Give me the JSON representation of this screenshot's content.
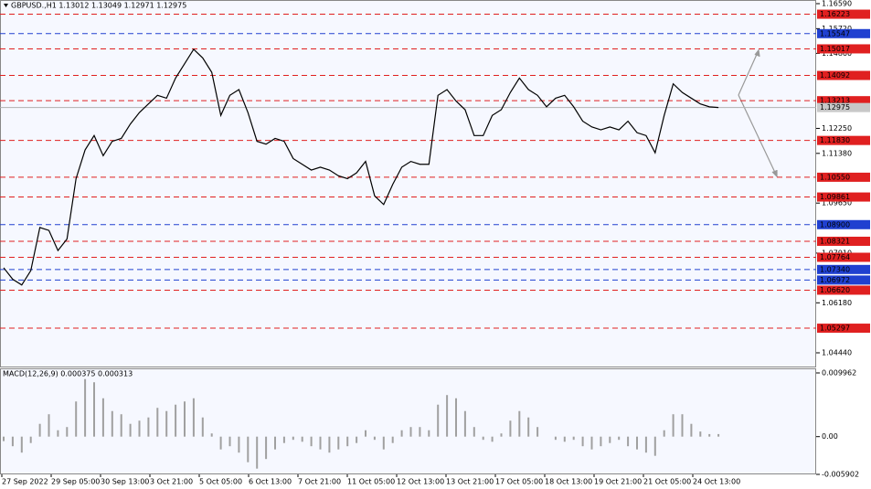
{
  "chart_data": [
    {
      "type": "line",
      "title": "GBPUSD.,H1  1.13012 1.13049 1.12971 1.12975",
      "color": "#000000",
      "ylim": [
        1.0444,
        1.1659
      ],
      "yticks": [
        {
          "value": 1.1659,
          "label": "1.16590"
        },
        {
          "value": 1.1572,
          "label": "1.15720"
        },
        {
          "value": 1.1486,
          "label": "1.14860"
        },
        {
          "value": 1.1225,
          "label": "1.12250"
        },
        {
          "value": 1.1138,
          "label": "1.11380"
        },
        {
          "value": 1.0965,
          "label": "1.09650"
        },
        {
          "value": 1.0791,
          "label": "1.07910"
        },
        {
          "value": 1.0618,
          "label": "1.06180"
        },
        {
          "value": 1.0444,
          "label": "1.04440"
        }
      ],
      "levels": [
        1.16223,
        1.15547,
        1.15017,
        1.14092,
        1.13213,
        {
          "value": 1.1183,
          "label": "1.11830"
        },
        {
          "value": 1.1055,
          "label": "1.10550"
        },
        1.09861,
        {
          "value": 1.089,
          "label": "1.08900"
        },
        1.08321,
        1.07764,
        {
          "value": 1.0734,
          "label": "1.07340"
        },
        1.06972,
        {
          "value": 1.0662,
          "label": "1.06620"
        },
        1.05297
      ],
      "level_colors": [
        "#e02020",
        "#2040d0",
        "#e02020",
        "#e02020",
        "#e02020",
        "#e02020",
        "#e02020",
        "#e02020",
        "#2040d0",
        "#e02020",
        "#e02020",
        "#2040d0",
        "#2040d0",
        "#e02020",
        "#e02020"
      ],
      "current_price": 1.12975,
      "x_labels": [
        "27 Sep 2022",
        "29 Sep 05:00",
        "30 Sep 13:00",
        "3 Oct 21:00",
        "5 Oct 05:00",
        "6 Oct 13:00",
        "7 Oct 21:00",
        "11 Oct 05:00",
        "12 Oct 13:00",
        "13 Oct 21:00",
        "17 Oct 05:00",
        "18 Oct 13:00",
        "19 Oct 21:00",
        "21 Oct 05:00",
        "24 Oct 13:00"
      ],
      "values": [
        1.074,
        1.07,
        1.068,
        1.073,
        1.088,
        1.087,
        1.08,
        1.084,
        1.105,
        1.115,
        1.12,
        1.113,
        1.118,
        1.119,
        1.124,
        1.128,
        1.131,
        1.134,
        1.133,
        1.14,
        1.145,
        1.15,
        1.147,
        1.142,
        1.127,
        1.134,
        1.136,
        1.128,
        1.118,
        1.117,
        1.119,
        1.118,
        1.112,
        1.11,
        1.108,
        1.109,
        1.108,
        1.106,
        1.105,
        1.107,
        1.111,
        1.099,
        1.096,
        1.103,
        1.109,
        1.111,
        1.11,
        1.11,
        1.134,
        1.136,
        1.132,
        1.129,
        1.12,
        1.12,
        1.127,
        1.129,
        1.135,
        1.14,
        1.136,
        1.134,
        1.13,
        1.133,
        1.134,
        1.13,
        1.125,
        1.123,
        1.122,
        1.123,
        1.122,
        1.125,
        1.121,
        1.12,
        1.114,
        1.127,
        1.138,
        1.135,
        1.133,
        1.131,
        1.13,
        1.12975
      ]
    },
    {
      "type": "bar",
      "title": "MACD(12,26,9) 0.000375 0.000313",
      "color": "#a0a0a0",
      "ylim": [
        -0.005902,
        0.009962
      ],
      "yticks": [
        0.009962,
        {
          "value": 0,
          "label": "0.00"
        },
        -0.005902
      ],
      "values": [
        -0.0007,
        -0.0015,
        -0.0025,
        -0.001,
        0.002,
        0.0035,
        0.001,
        0.0015,
        0.0055,
        0.009,
        0.0085,
        0.006,
        0.004,
        0.0035,
        0.002,
        0.0025,
        0.003,
        0.0045,
        0.004,
        0.005,
        0.0055,
        0.006,
        0.003,
        0.0005,
        -0.002,
        -0.0015,
        -0.0025,
        -0.004,
        -0.005,
        -0.0035,
        -0.002,
        -0.001,
        -0.0005,
        -0.0008,
        -0.0015,
        -0.002,
        -0.0025,
        -0.002,
        -0.0015,
        -0.001,
        0.001,
        -0.0005,
        -0.002,
        -0.001,
        0.001,
        0.0015,
        0.0015,
        0.001,
        0.005,
        0.0065,
        0.006,
        0.004,
        0.0015,
        -0.0005,
        -0.0008,
        0.0005,
        0.0025,
        0.004,
        0.003,
        0.0015,
        0,
        -0.0005,
        -0.0008,
        -0.0005,
        -0.0015,
        -0.002,
        -0.0015,
        -0.001,
        -0.0005,
        -0.0015,
        -0.002,
        -0.0025,
        -0.003,
        0.001,
        0.0035,
        0.0035,
        0.002,
        0.0008,
        0.0004,
        0.0004
      ]
    }
  ]
}
